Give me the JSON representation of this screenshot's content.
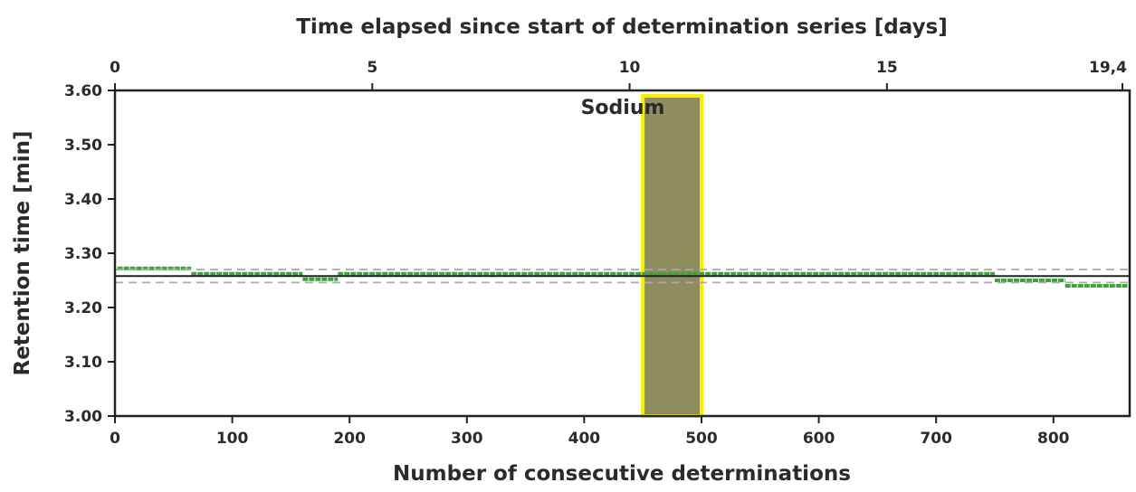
{
  "chart_data": {
    "type": "scatter",
    "title": "",
    "xlabel": "Number of consecutive determinations",
    "ylabel": "Retention time [min]",
    "x2label": "Time elapsed since start of determination series [days]",
    "xlim": [
      0,
      865
    ],
    "ylim": [
      3.0,
      3.6
    ],
    "x_ticks": [
      0,
      100,
      200,
      300,
      400,
      500,
      600,
      700,
      800
    ],
    "y_ticks": [
      "3.00",
      "3.10",
      "3.20",
      "3.30",
      "3.40",
      "3.50",
      "3.60"
    ],
    "x2_ticks": [
      {
        "label": "0",
        "day": 0
      },
      {
        "label": "5",
        "day": 5
      },
      {
        "label": "10",
        "day": 10
      },
      {
        "label": "15",
        "day": 15
      },
      {
        "label": "19,4",
        "day": 19.4
      }
    ],
    "x2lim_days": [
      0,
      19.4
    ],
    "series": [
      {
        "name": "Sodium",
        "color": "#3aa63a",
        "segments": [
          {
            "x": [
              2,
              65
            ],
            "y": 3.272
          },
          {
            "x": [
              65,
              160
            ],
            "y": 3.262
          },
          {
            "x": [
              160,
              190
            ],
            "y": 3.252
          },
          {
            "x": [
              190,
              750
            ],
            "y": 3.262
          },
          {
            "x": [
              750,
              810
            ],
            "y": 3.25
          },
          {
            "x": [
              810,
              863
            ],
            "y": 3.24
          }
        ]
      }
    ],
    "reference_lines": [
      {
        "y": 3.258,
        "style": "solid",
        "color": "#222222"
      },
      {
        "y": 3.27,
        "style": "dashed",
        "color": "#aaaaaa"
      },
      {
        "y": 3.246,
        "style": "dashed",
        "color": "#aaaaaa"
      }
    ],
    "highlight": {
      "x": [
        450,
        500
      ],
      "y": [
        3.0,
        3.59
      ],
      "fill": "#8f8c60",
      "stroke": "#f4f000"
    },
    "grid": false
  }
}
